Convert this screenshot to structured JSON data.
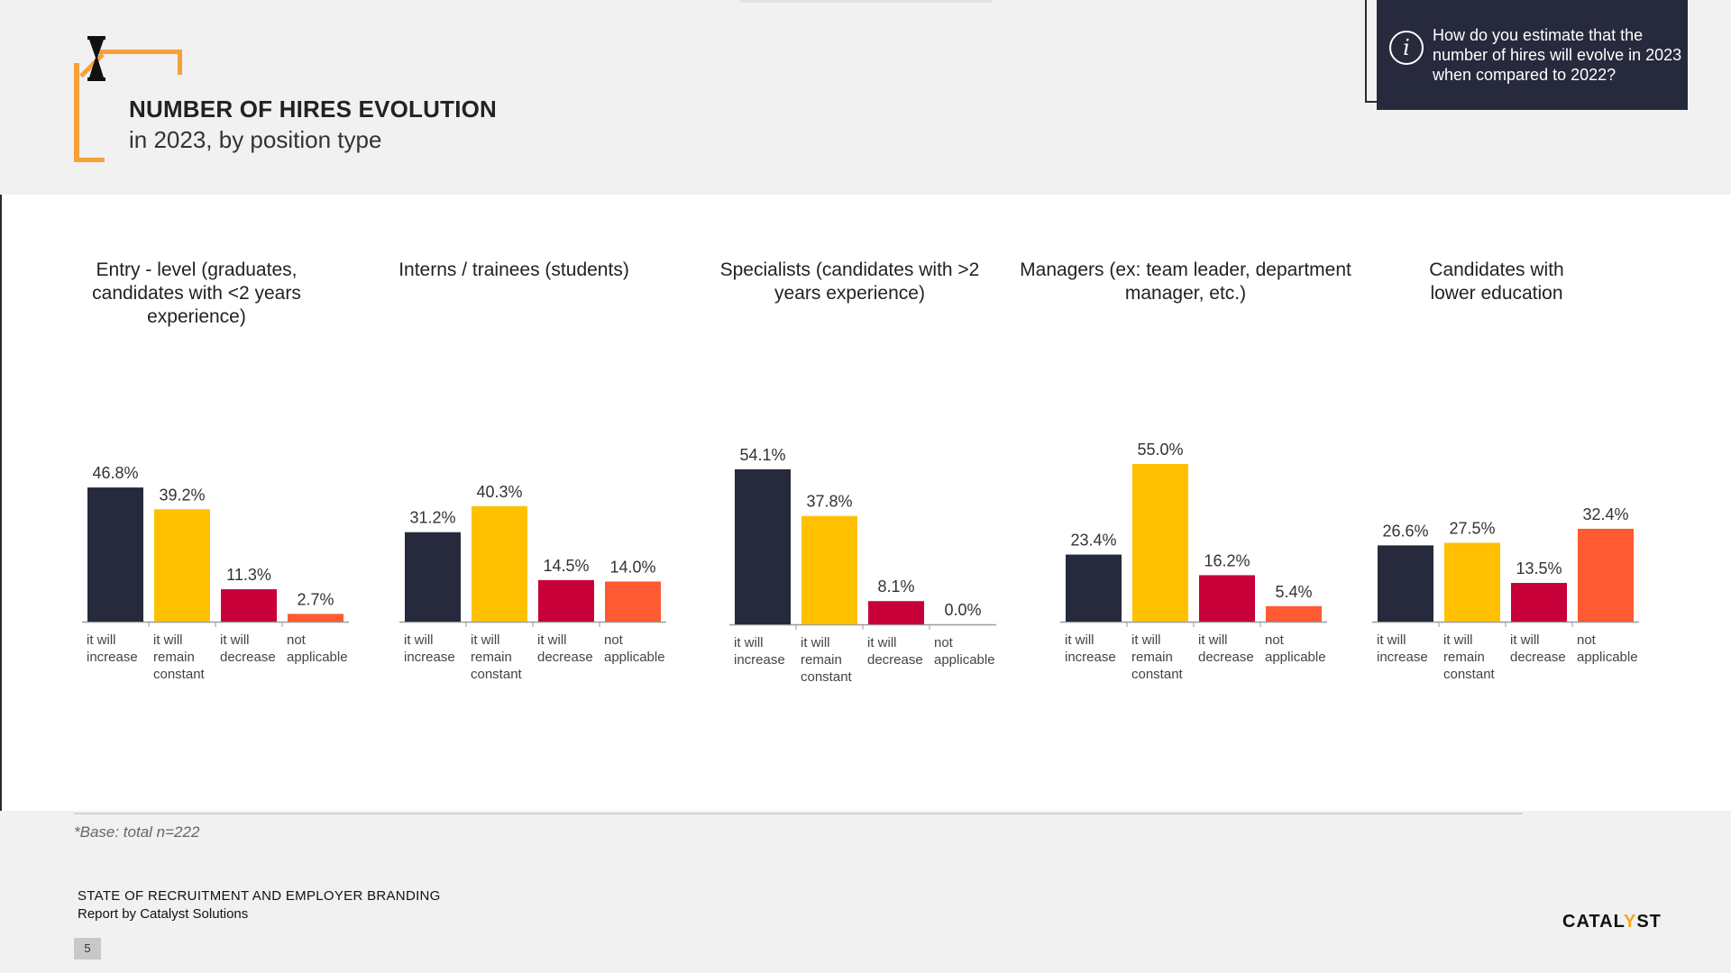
{
  "header": {
    "title": "NUMBER OF HIRES EVOLUTION",
    "subtitle": "in 2023, by position type"
  },
  "question": {
    "text": "How do you estimate that the number of hires will evolve in 2023 when compared to 2022?",
    "icon": "info-icon"
  },
  "colors": {
    "increase": "#262a3c",
    "remain": "#ffc000",
    "decrease": "#c8003a",
    "not_applicable": "#ff5a32"
  },
  "chart_data": [
    {
      "type": "bar",
      "title": "Entry - level (graduates, candidates with <2 years experience)",
      "categories": [
        "it will increase",
        "it will remain constant",
        "it will decrease",
        "not applicable"
      ],
      "values": [
        46.8,
        39.2,
        11.3,
        2.7
      ],
      "labels": [
        "46.8%",
        "39.2%",
        "11.3%",
        "2.7%"
      ],
      "ylim": [
        0,
        60
      ]
    },
    {
      "type": "bar",
      "title": "Interns / trainees (students)",
      "categories": [
        "it will increase",
        "it will remain constant",
        "it will decrease",
        "not applicable"
      ],
      "values": [
        31.2,
        40.3,
        14.5,
        14.0
      ],
      "labels": [
        "31.2%",
        "40.3%",
        "14.5%",
        "14.0%"
      ],
      "ylim": [
        0,
        60
      ]
    },
    {
      "type": "bar",
      "title": "Specialists (candidates with >2 years experience)",
      "categories": [
        "it will increase",
        "it will remain constant",
        "it will decrease",
        "not applicable"
      ],
      "values": [
        54.1,
        37.8,
        8.1,
        0.0
      ],
      "labels": [
        "54.1%",
        "37.8%",
        "8.1%",
        "0.0%"
      ],
      "ylim": [
        0,
        60
      ]
    },
    {
      "type": "bar",
      "title": "Managers (ex: team leader, department manager, etc.)",
      "categories": [
        "it will increase",
        "it will remain constant",
        "it will decrease",
        "not applicable"
      ],
      "values": [
        23.4,
        55.0,
        16.2,
        5.4
      ],
      "labels": [
        "23.4%",
        "55.0%",
        "16.2%",
        "5.4%"
      ],
      "ylim": [
        0,
        60
      ]
    },
    {
      "type": "bar",
      "title": "Candidates with lower education",
      "categories": [
        "it will increase",
        "it will remain constant",
        "it will decrease",
        "not applicable"
      ],
      "values": [
        26.6,
        27.5,
        13.5,
        32.4
      ],
      "labels": [
        "26.6%",
        "27.5%",
        "13.5%",
        "32.4%"
      ],
      "ylim": [
        0,
        60
      ]
    }
  ],
  "footer": {
    "base_note": "*Base: total n=222",
    "report_title": "STATE OF RECRUITMENT AND EMPLOYER BRANDING",
    "report_sub": "Report by Catalyst Solutions",
    "page": "5",
    "logo_pre": "CATAL",
    "logo_y": "Y",
    "logo_post": "ST"
  }
}
